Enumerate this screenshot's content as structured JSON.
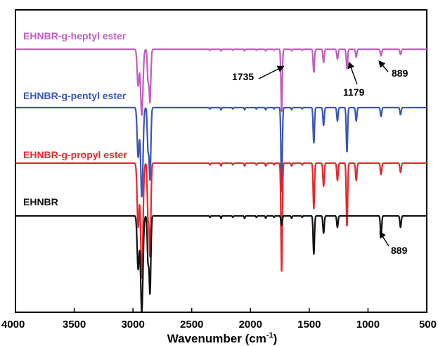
{
  "chart_data": {
    "type": "line",
    "xlabel": "Wavenumber (cm",
    "xlabel_sup": "-1",
    "xlabel_close": ")",
    "x_reversed": true,
    "xlim": [
      4000,
      500
    ],
    "xticks": [
      "4000",
      "3500",
      "3000",
      "2500",
      "2000",
      "1500",
      "1000",
      "500"
    ],
    "yticks": [],
    "grid": false,
    "legend": "inline labels next to each trace",
    "series": [
      {
        "name": "EHNBR-g-heptyl ester",
        "color": "#c15ec0",
        "bands": [
          [
            2956,
            0.55
          ],
          [
            2925,
            1.0
          ],
          [
            2872,
            0.45
          ],
          [
            2855,
            0.8
          ],
          [
            1735,
            0.95
          ],
          [
            1461,
            0.35
          ],
          [
            1378,
            0.2
          ],
          [
            1260,
            0.15
          ],
          [
            1179,
            0.3
          ],
          [
            1100,
            0.12
          ],
          [
            889,
            0.1
          ],
          [
            723,
            0.08
          ]
        ]
      },
      {
        "name": "EHNBR-g-pentyl ester",
        "color": "#3b55b5",
        "bands": [
          [
            2956,
            0.55
          ],
          [
            2925,
            1.0
          ],
          [
            2872,
            0.45
          ],
          [
            2855,
            0.8
          ],
          [
            1735,
            0.95
          ],
          [
            1461,
            0.4
          ],
          [
            1378,
            0.2
          ],
          [
            1260,
            0.15
          ],
          [
            1179,
            0.5
          ],
          [
            1100,
            0.15
          ],
          [
            889,
            0.1
          ],
          [
            723,
            0.08
          ]
        ]
      },
      {
        "name": "EHNBR-g-propyl ester",
        "color": "#e8272b",
        "bands": [
          [
            2956,
            0.55
          ],
          [
            2925,
            1.0
          ],
          [
            2872,
            0.45
          ],
          [
            2855,
            0.8
          ],
          [
            1735,
            0.95
          ],
          [
            1461,
            0.4
          ],
          [
            1378,
            0.2
          ],
          [
            1260,
            0.15
          ],
          [
            1179,
            0.55
          ],
          [
            1100,
            0.15
          ],
          [
            889,
            0.1
          ],
          [
            723,
            0.08
          ]
        ]
      },
      {
        "name": "EHNBR",
        "color": "#111111",
        "bands": [
          [
            2956,
            0.55
          ],
          [
            2925,
            1.0
          ],
          [
            2872,
            0.45
          ],
          [
            2855,
            0.8
          ],
          [
            1735,
            0.1
          ],
          [
            1461,
            0.4
          ],
          [
            1378,
            0.18
          ],
          [
            1260,
            0.12
          ],
          [
            889,
            0.2
          ],
          [
            723,
            0.12
          ]
        ]
      }
    ],
    "annotations": [
      {
        "text": "1735",
        "x": 1735,
        "series": 0
      },
      {
        "text": "1179",
        "x": 1179,
        "series": 0
      },
      {
        "text": "889",
        "x": 889,
        "series": 0
      },
      {
        "text": "889",
        "x": 889,
        "series": 3
      }
    ]
  }
}
